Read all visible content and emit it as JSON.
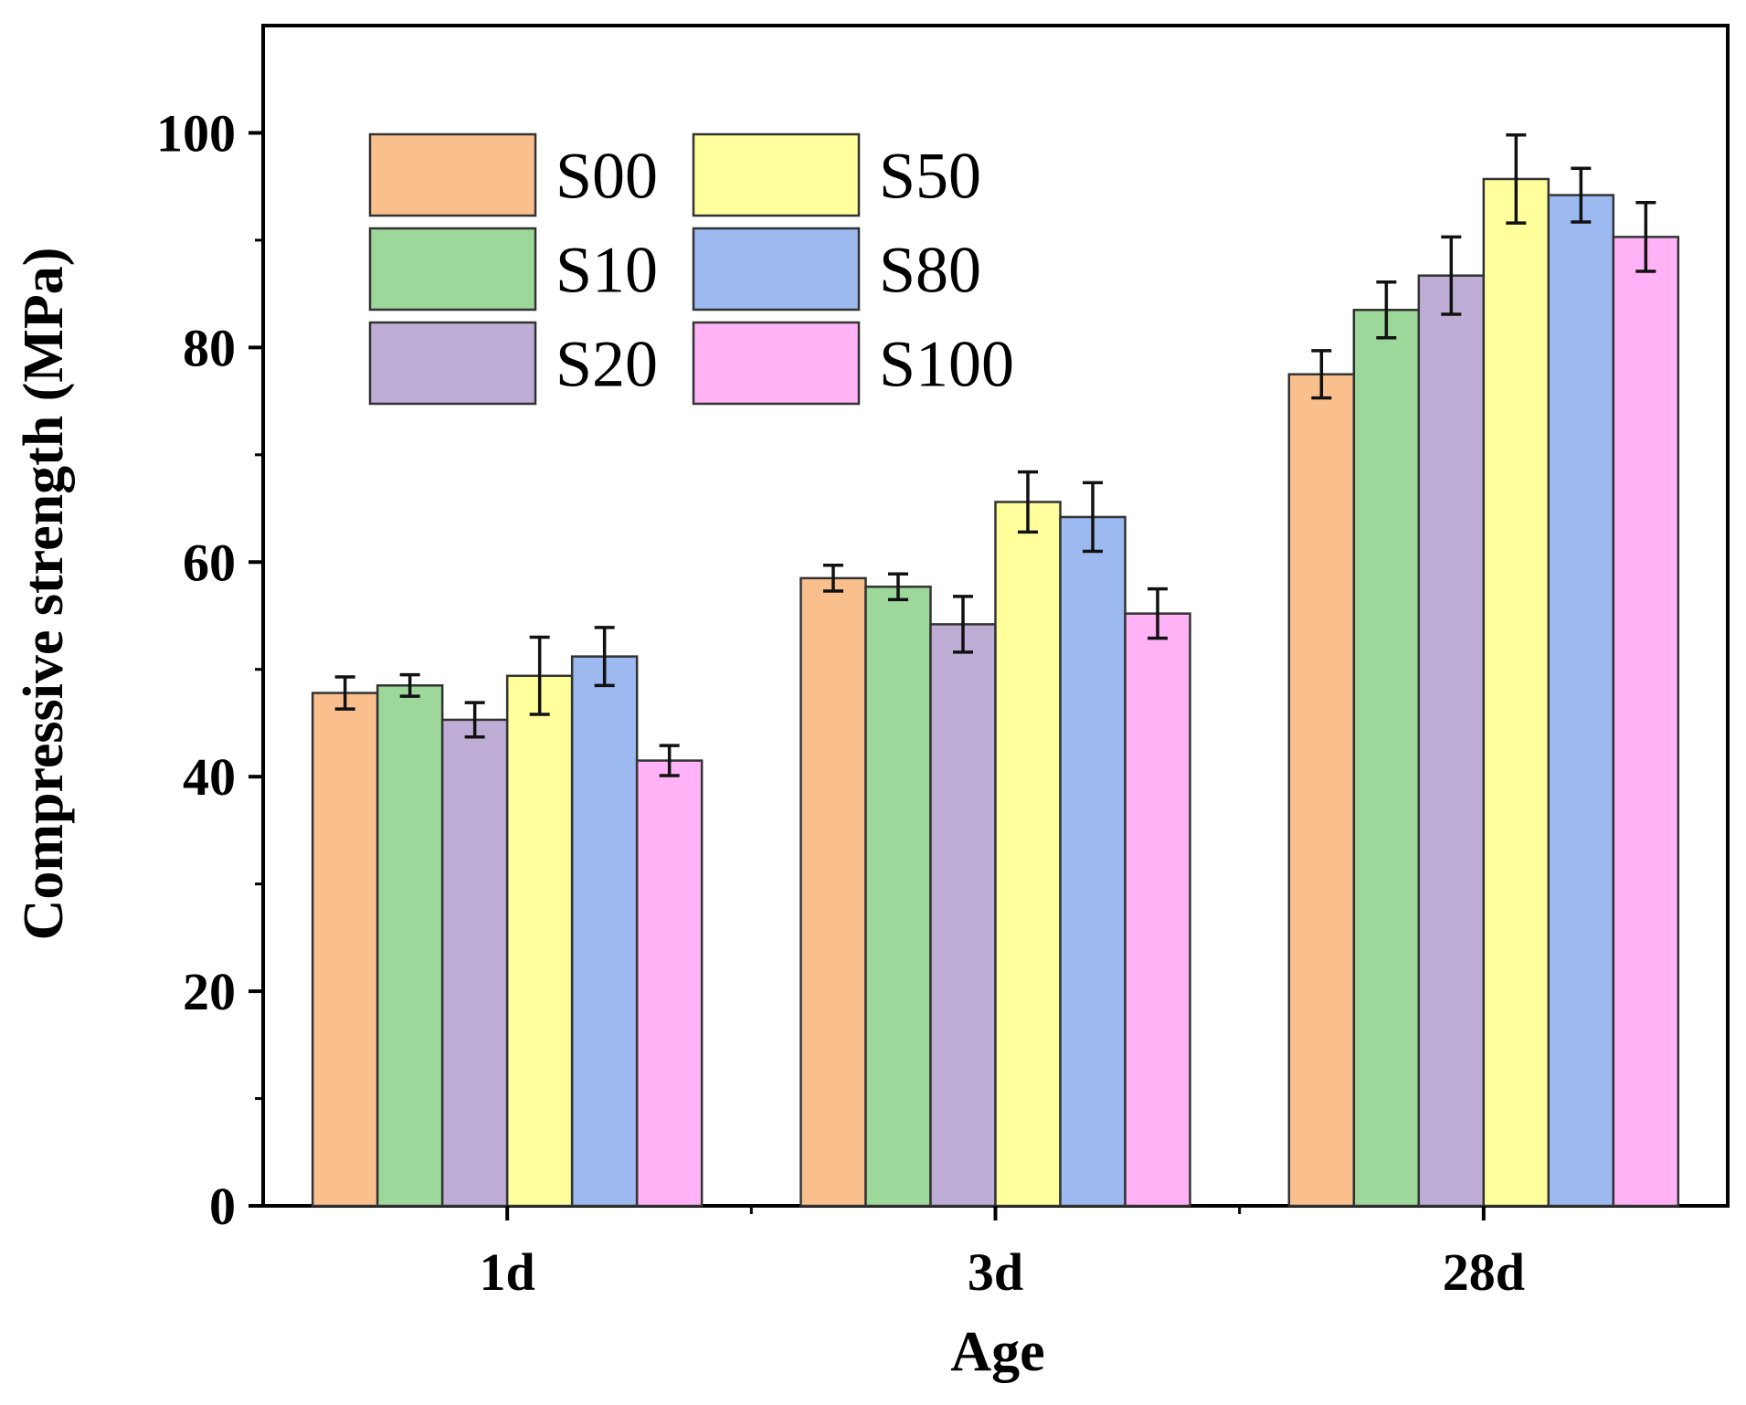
{
  "chart_data": {
    "type": "bar",
    "title": "",
    "xlabel": "Age",
    "ylabel": "Compressive strength (MPa)",
    "ylim": [
      0,
      110
    ],
    "yticks": [
      0,
      20,
      40,
      60,
      80,
      100
    ],
    "categories": [
      "1d",
      "3d",
      "28d"
    ],
    "legend": {
      "placement": "top-left",
      "columns": 2
    },
    "series": [
      {
        "name": "S00",
        "color": "#F9C08E",
        "values": [
          47.8,
          58.5,
          77.5
        ],
        "errors": [
          1.5,
          1.2,
          2.2
        ]
      },
      {
        "name": "S10",
        "color": "#9DD89A",
        "values": [
          48.5,
          57.7,
          83.5
        ],
        "errors": [
          1.0,
          1.2,
          2.6
        ]
      },
      {
        "name": "S20",
        "color": "#BEAED6",
        "values": [
          45.3,
          54.2,
          86.7
        ],
        "errors": [
          1.6,
          2.6,
          3.6
        ]
      },
      {
        "name": "S50",
        "color": "#FFFF9C",
        "values": [
          49.4,
          65.6,
          95.7
        ],
        "errors": [
          3.6,
          2.8,
          4.1
        ]
      },
      {
        "name": "S80",
        "color": "#9CB9F0",
        "values": [
          51.2,
          64.2,
          94.2
        ],
        "errors": [
          2.7,
          3.2,
          2.5
        ]
      },
      {
        "name": "S100",
        "color": "#FFB2F5",
        "values": [
          41.5,
          55.2,
          90.3
        ],
        "errors": [
          1.4,
          2.3,
          3.2
        ]
      }
    ]
  }
}
